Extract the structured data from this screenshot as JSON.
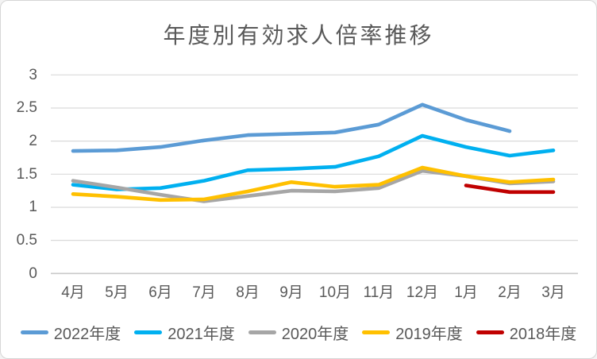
{
  "chart_data": {
    "type": "line",
    "title": "年度別有効求人倍率推移",
    "x_categories": [
      "4月",
      "5月",
      "6月",
      "7月",
      "8月",
      "9月",
      "10月",
      "11月",
      "12月",
      "1月",
      "2月",
      "3月"
    ],
    "y_ticks": [
      "3",
      "2.5",
      "2",
      "1.5",
      "1",
      "0.5",
      "0"
    ],
    "ylim": [
      0,
      3
    ],
    "grid": true,
    "legend_position": "bottom",
    "series": [
      {
        "name": "2022年度",
        "color": "#5B9BD5",
        "values": [
          1.85,
          1.86,
          1.91,
          2.01,
          2.09,
          2.11,
          2.13,
          2.25,
          2.55,
          2.32,
          2.15,
          null
        ]
      },
      {
        "name": "2021年度",
        "color": "#00B0F0",
        "values": [
          1.34,
          1.27,
          1.29,
          1.4,
          1.56,
          1.58,
          1.61,
          1.77,
          2.08,
          1.91,
          1.78,
          1.86
        ]
      },
      {
        "name": "2020年度",
        "color": "#A6A6A6",
        "values": [
          1.4,
          1.3,
          1.19,
          1.09,
          1.17,
          1.25,
          1.24,
          1.29,
          1.55,
          1.47,
          1.36,
          1.39
        ]
      },
      {
        "name": "2019年度",
        "color": "#FFC000",
        "values": [
          1.2,
          1.16,
          1.11,
          1.12,
          1.24,
          1.38,
          1.31,
          1.34,
          1.6,
          1.47,
          1.38,
          1.42
        ]
      },
      {
        "name": "2018年度",
        "color": "#C00000",
        "values": [
          null,
          null,
          null,
          null,
          null,
          null,
          null,
          null,
          null,
          1.33,
          1.23,
          1.23
        ]
      }
    ]
  },
  "colors": {
    "text": "#595959",
    "gridline": "#D9D9D9",
    "zero_axis": "#C9C9C9",
    "background": "#FFFFFF",
    "frame_border": "#D6D6D6"
  }
}
